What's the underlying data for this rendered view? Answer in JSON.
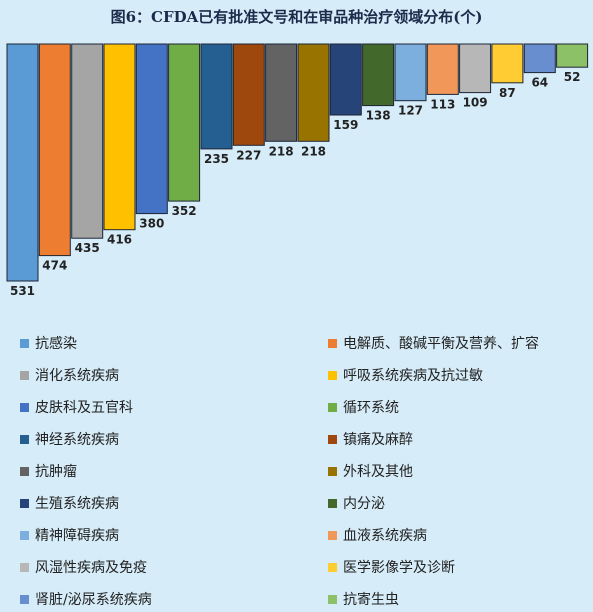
{
  "chart_data": {
    "type": "bar",
    "title": "图6：CFDA已有批准文号和在审品种治疗领域分布(个)",
    "xlabel": "",
    "ylabel": "",
    "ylim": [
      0,
      531
    ],
    "grid": false,
    "legend_position": "bottom",
    "categories": [
      "抗感染",
      "电解质、酸碱平衡及营养、扩容",
      "消化系统疾病",
      "呼吸系统疾病及抗过敏",
      "皮肤科及五官科",
      "循环系统",
      "神经系统疾病",
      "镇痛及麻醉",
      "抗肿瘤",
      "外科及其他",
      "生殖系统疾病",
      "内分泌",
      "精神障碍疾病",
      "血液系统疾病",
      "风湿性疾病及免疫",
      "医学影像学及诊断",
      "肾脏/泌尿系统疾病",
      "抗寄生虫"
    ],
    "values": [
      531,
      474,
      435,
      416,
      380,
      352,
      235,
      227,
      218,
      218,
      159,
      138,
      127,
      113,
      109,
      87,
      64,
      52
    ],
    "colors": [
      "#5b9bd5",
      "#ed7d31",
      "#a5a5a5",
      "#ffc000",
      "#4472c4",
      "#70ad47",
      "#255e91",
      "#9e480e",
      "#636363",
      "#997300",
      "#264478",
      "#43682b",
      "#7cafdd",
      "#f1975a",
      "#b7b7b7",
      "#ffcd33",
      "#698ed0",
      "#8cc168"
    ]
  }
}
